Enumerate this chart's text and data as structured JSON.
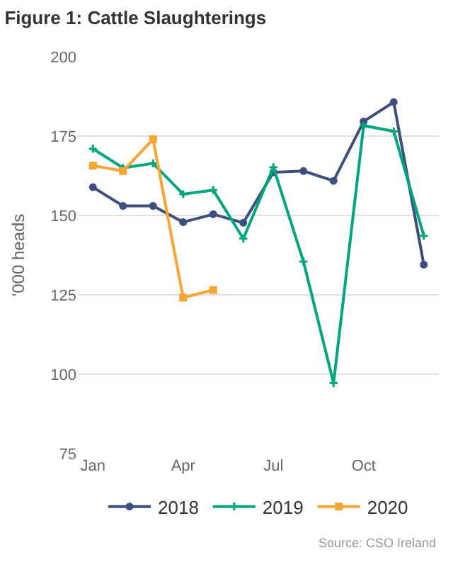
{
  "chart_data": {
    "type": "line",
    "title": "Figure 1: Cattle Slaughterings",
    "ylabel": "'000 heads",
    "categories": [
      "Jan",
      null,
      null,
      "Apr",
      null,
      null,
      "Jul",
      null,
      null,
      "Oct",
      null,
      null
    ],
    "series": [
      {
        "name": "2018",
        "color": "#3d4f7d",
        "marker": "circle",
        "values": [
          158.9,
          153.0,
          153.0,
          147.9,
          150.4,
          147.7,
          163.6,
          164.0,
          160.9,
          179.6,
          185.7,
          134.5
        ]
      },
      {
        "name": "2019",
        "color": "#00a67e",
        "marker": "cross",
        "values": [
          171.0,
          165.0,
          166.4,
          156.7,
          158.0,
          142.7,
          165.2,
          135.5,
          97.2,
          178.3,
          176.5,
          143.6
        ]
      },
      {
        "name": "2020",
        "color": "#f7a535",
        "marker": "square",
        "values": [
          165.7,
          164.0,
          174.0,
          124.1,
          126.5,
          null,
          null,
          null,
          null,
          null,
          null,
          null
        ]
      }
    ],
    "ylim": [
      75,
      200
    ],
    "yticks": [
      75,
      100,
      125,
      150,
      175,
      200
    ],
    "grid": "y",
    "legend": "bottom",
    "annotations": [
      "Source: CSO Ireland"
    ]
  }
}
